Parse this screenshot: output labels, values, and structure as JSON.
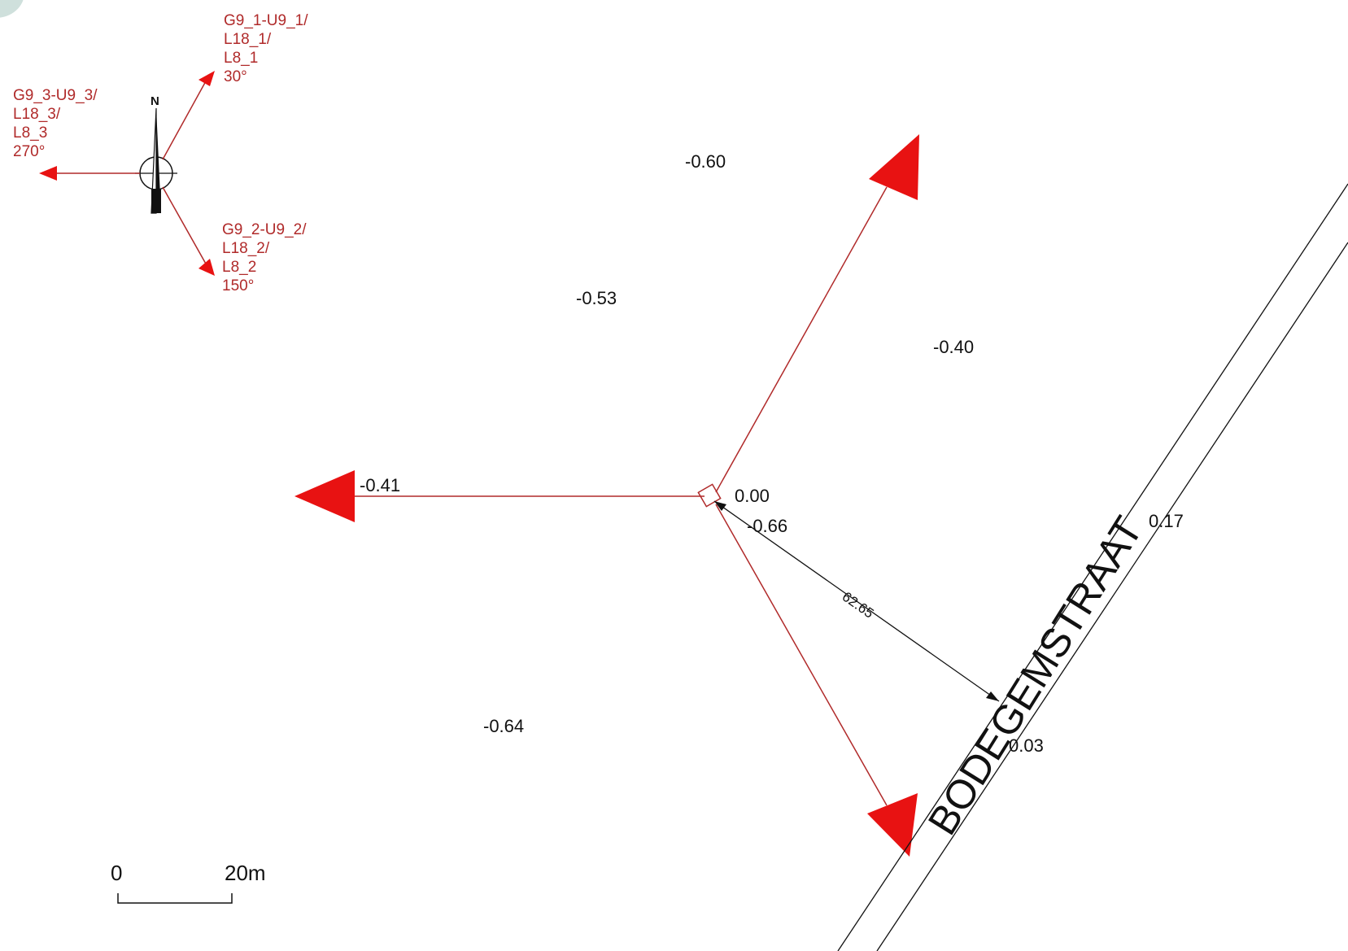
{
  "colors": {
    "accent_red": "#e81212",
    "line_red": "#b02a2a",
    "line_black": "#111111",
    "corner_badge": "#cfe0dc"
  },
  "legend": {
    "north_symbol": "N",
    "directions": [
      {
        "lines": [
          "G9_1-U9_1/",
          "L18_1/",
          "L8_1",
          "30°"
        ],
        "bearing_deg": 30
      },
      {
        "lines": [
          "G9_2-U9_2/",
          "L18_2/",
          "L8_2",
          "150°"
        ],
        "bearing_deg": 150
      },
      {
        "lines": [
          "G9_3-U9_3/",
          "L18_3/",
          "L8_3",
          "270°"
        ],
        "bearing_deg": 270
      }
    ]
  },
  "map": {
    "origin_value": "0.00",
    "elevations": [
      "-0.60",
      "-0.53",
      "-0.40",
      "-0.41",
      "-0.66",
      "0.17",
      "-0.64",
      "0.03"
    ],
    "distance_label": "62.65",
    "street_name": "BODEGEMSTRAAT"
  },
  "scale_bar": {
    "start_label": "0",
    "end_label": "20m"
  }
}
